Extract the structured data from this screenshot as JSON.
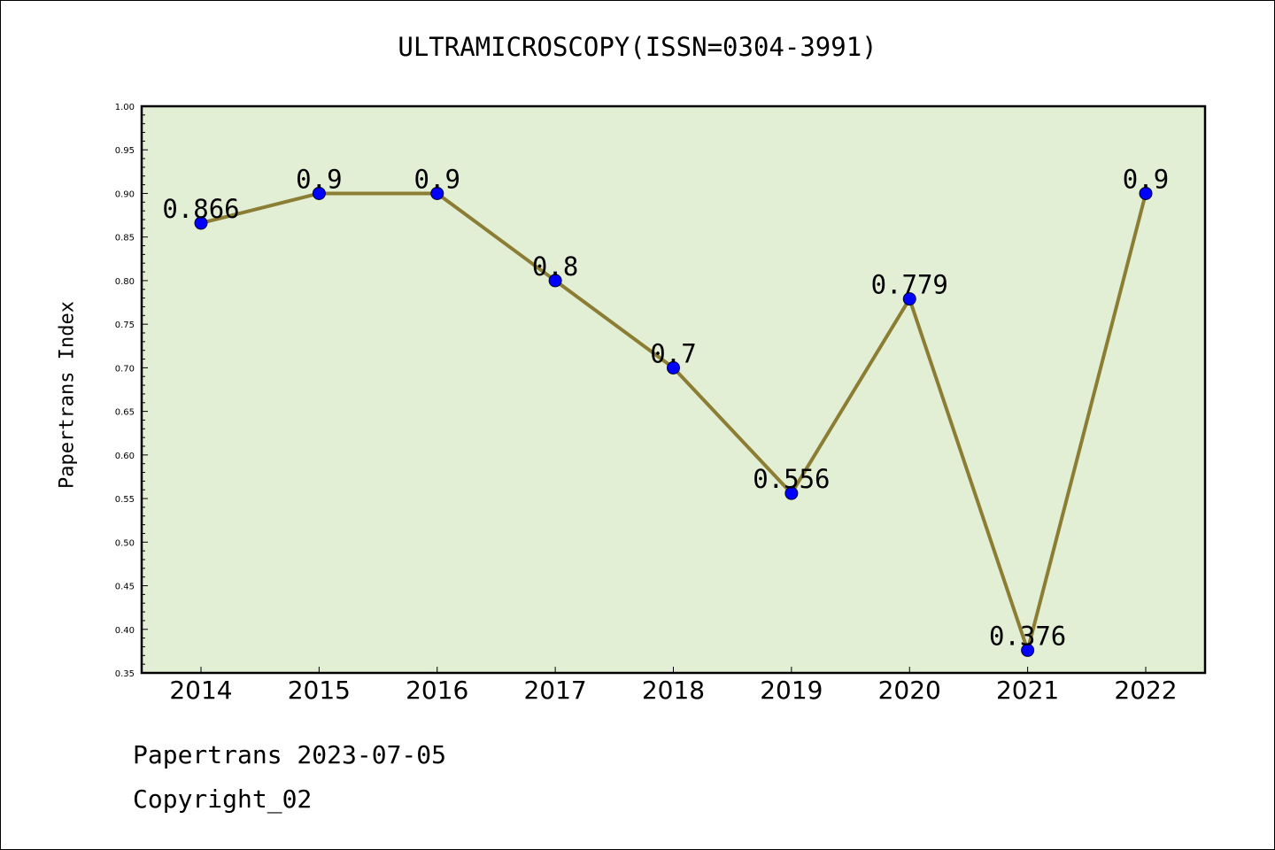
{
  "chart_data": {
    "type": "line",
    "title": "ULTRAMICROSCOPY(ISSN=0304-3991)",
    "ylabel": "Papertrans Index",
    "xlabel": "",
    "ylim": [
      0.35,
      1.0
    ],
    "yticks": [
      "0.35",
      "0.40",
      "0.45",
      "0.50",
      "0.55",
      "0.60",
      "0.65",
      "0.70",
      "0.75",
      "0.80",
      "0.85",
      "0.90",
      "0.95",
      "1.00"
    ],
    "categories": [
      "2014",
      "2015",
      "2016",
      "2017",
      "2018",
      "2019",
      "2020",
      "2021",
      "2022"
    ],
    "values": [
      0.866,
      0.9,
      0.9,
      0.8,
      0.7,
      0.556,
      0.779,
      0.376,
      0.9
    ],
    "data_labels": [
      "0.866",
      "0.9",
      "0.9",
      "0.8",
      "0.7",
      "0.556",
      "0.779",
      "0.376",
      "0.9"
    ],
    "grid": false,
    "colors": {
      "plot_bg": "#e2efd5",
      "line": "#8b7d34",
      "marker": "#0000ff"
    }
  },
  "footer": {
    "line1": "Papertrans 2023-07-05",
    "line2": "Copyright_02"
  }
}
